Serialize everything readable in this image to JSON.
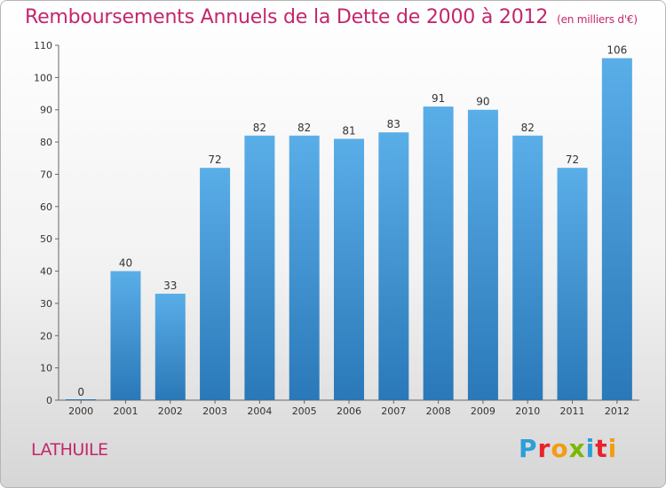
{
  "header": {
    "title": "Remboursements Annuels de la Dette de 2000 à 2012",
    "unit": "(en milliers d'€)"
  },
  "footer": {
    "commune": "LATHUILE",
    "logo_letters": [
      "P",
      "r",
      "o",
      "x",
      "i",
      "t",
      "i"
    ],
    "logo_colors": [
      "#2a9fd8",
      "#e8232a",
      "#f39c12",
      "#7ab800",
      "#2a9fd8",
      "#e8232a",
      "#f39c12"
    ]
  },
  "chart_data": {
    "type": "bar",
    "title": "Remboursements Annuels de la Dette de 2000 à 2012",
    "subtitle": "(en milliers d'€)",
    "xlabel": "",
    "ylabel": "",
    "categories": [
      "2000",
      "2001",
      "2002",
      "2003",
      "2004",
      "2005",
      "2006",
      "2007",
      "2008",
      "2009",
      "2010",
      "2011",
      "2012"
    ],
    "values": [
      0,
      40,
      33,
      72,
      82,
      82,
      81,
      83,
      91,
      90,
      82,
      72,
      106
    ],
    "ylim": [
      0,
      110
    ],
    "yticks": [
      0,
      10,
      20,
      30,
      40,
      50,
      60,
      70,
      80,
      90,
      100,
      110
    ],
    "grid": false,
    "legend": "none",
    "bar_color_top": "#5aaee8",
    "bar_color_bottom": "#2a78b8",
    "label_color": "#333333"
  }
}
